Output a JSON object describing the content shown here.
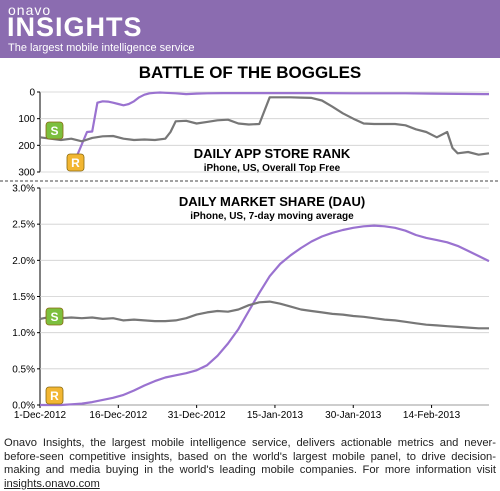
{
  "header": {
    "brand_small": "onavo",
    "brand_big": "INSIGHTS",
    "tagline": "The largest mobile intelligence service",
    "title": "BATTLE OF THE BOGGLES"
  },
  "legend_icons": [
    {
      "name": "scramble-with-friends",
      "glyph": "S",
      "color": "#7cbf3e"
    },
    {
      "name": "ruzzle",
      "glyph": "R",
      "color": "#f2b632"
    }
  ],
  "colors": {
    "series_purple": "#9a72d0",
    "series_gray": "#777777",
    "header": "#8b6cb0"
  },
  "chart_data": [
    {
      "type": "line",
      "title": "DAILY APP STORE RANK",
      "subtitle": "iPhone, US, Overall Top Free",
      "ylim": [
        0,
        300
      ],
      "y_inverted": true,
      "y_ticks": [
        "0",
        "100",
        "200",
        "300"
      ],
      "x_range_days": [
        0,
        86
      ],
      "series": [
        {
          "icon": "ruzzle",
          "color": "#9a72d0",
          "x": [
            6,
            9,
            10,
            11,
            12,
            13,
            14,
            15,
            16,
            17,
            18,
            19,
            20,
            21,
            22,
            23,
            24,
            26,
            28,
            30,
            32,
            35,
            40,
            45,
            50,
            55,
            60,
            65,
            70,
            75,
            80,
            85,
            86
          ],
          "y": [
            290,
            150,
            148,
            40,
            35,
            36,
            40,
            45,
            50,
            45,
            35,
            20,
            10,
            5,
            3,
            2,
            3,
            5,
            8,
            6,
            5,
            4,
            4,
            4,
            4,
            4,
            5,
            5,
            5,
            6,
            7,
            8,
            8
          ]
        },
        {
          "icon": "scramble-with-friends",
          "color": "#777777",
          "x": [
            0,
            2,
            4,
            6,
            8,
            10,
            12,
            14,
            16,
            18,
            20,
            22,
            24,
            25,
            26,
            28,
            30,
            32,
            34,
            36,
            38,
            40,
            42,
            44,
            46,
            48,
            50,
            52,
            54,
            56,
            58,
            60,
            62,
            64,
            66,
            68,
            70,
            72,
            74,
            76,
            78,
            79,
            80,
            82,
            84,
            86
          ],
          "y": [
            170,
            175,
            180,
            175,
            185,
            172,
            166,
            165,
            175,
            180,
            178,
            180,
            175,
            150,
            110,
            108,
            118,
            112,
            106,
            104,
            118,
            122,
            120,
            20,
            20,
            20,
            21,
            22,
            32,
            55,
            80,
            100,
            118,
            120,
            120,
            120,
            125,
            140,
            150,
            170,
            150,
            210,
            230,
            225,
            235,
            230
          ]
        }
      ]
    },
    {
      "type": "line",
      "title": "DAILY MARKET SHARE (DAU)",
      "subtitle": "iPhone, US, 7-day moving average",
      "ylim": [
        0,
        3.0
      ],
      "y_ticks": [
        "0.0%",
        "0.5%",
        "1.0%",
        "1.5%",
        "2.0%",
        "2.5%",
        "3.0%"
      ],
      "x_ticks": [
        "1-Dec-2012",
        "16-Dec-2012",
        "31-Dec-2012",
        "15-Jan-2013",
        "30-Jan-2013",
        "14-Feb-2013"
      ],
      "x_tick_days": [
        0,
        15,
        30,
        45,
        60,
        75
      ],
      "x_range_days": [
        0,
        86
      ],
      "series": [
        {
          "icon": "ruzzle",
          "color": "#9a72d0",
          "x": [
            0,
            4,
            6,
            8,
            10,
            12,
            14,
            16,
            18,
            20,
            22,
            24,
            26,
            28,
            30,
            32,
            34,
            36,
            38,
            40,
            42,
            44,
            46,
            48,
            50,
            52,
            54,
            56,
            58,
            60,
            62,
            64,
            66,
            68,
            70,
            72,
            74,
            76,
            78,
            80,
            82,
            84,
            86
          ],
          "y": [
            0.0,
            0.0,
            0.01,
            0.02,
            0.04,
            0.07,
            0.1,
            0.14,
            0.2,
            0.27,
            0.33,
            0.38,
            0.41,
            0.44,
            0.48,
            0.55,
            0.68,
            0.85,
            1.05,
            1.3,
            1.55,
            1.78,
            1.95,
            2.07,
            2.17,
            2.26,
            2.33,
            2.38,
            2.42,
            2.45,
            2.47,
            2.48,
            2.47,
            2.45,
            2.41,
            2.35,
            2.31,
            2.28,
            2.25,
            2.2,
            2.13,
            2.06,
            1.99
          ]
        },
        {
          "icon": "scramble-with-friends",
          "color": "#777777",
          "x": [
            0,
            2,
            4,
            6,
            8,
            10,
            12,
            14,
            16,
            18,
            20,
            22,
            24,
            26,
            28,
            30,
            32,
            34,
            36,
            38,
            40,
            42,
            44,
            46,
            48,
            50,
            52,
            54,
            56,
            58,
            60,
            62,
            64,
            66,
            68,
            70,
            72,
            74,
            76,
            78,
            80,
            82,
            84,
            86
          ],
          "y": [
            1.19,
            1.22,
            1.2,
            1.21,
            1.2,
            1.21,
            1.19,
            1.2,
            1.17,
            1.18,
            1.17,
            1.16,
            1.16,
            1.17,
            1.2,
            1.25,
            1.28,
            1.3,
            1.29,
            1.32,
            1.38,
            1.42,
            1.43,
            1.4,
            1.36,
            1.32,
            1.3,
            1.28,
            1.26,
            1.25,
            1.23,
            1.22,
            1.2,
            1.18,
            1.17,
            1.15,
            1.13,
            1.11,
            1.1,
            1.09,
            1.08,
            1.07,
            1.06,
            1.06
          ]
        }
      ]
    }
  ],
  "footer": {
    "text": "Onavo Insights, the largest mobile intelligence service, delivers actionable metrics and never-before-seen competitive insights, based on the world's largest mobile panel, to drive decision-making and media buying in the world's leading mobile companies. For more information visit ",
    "link": "insights.onavo.com"
  }
}
